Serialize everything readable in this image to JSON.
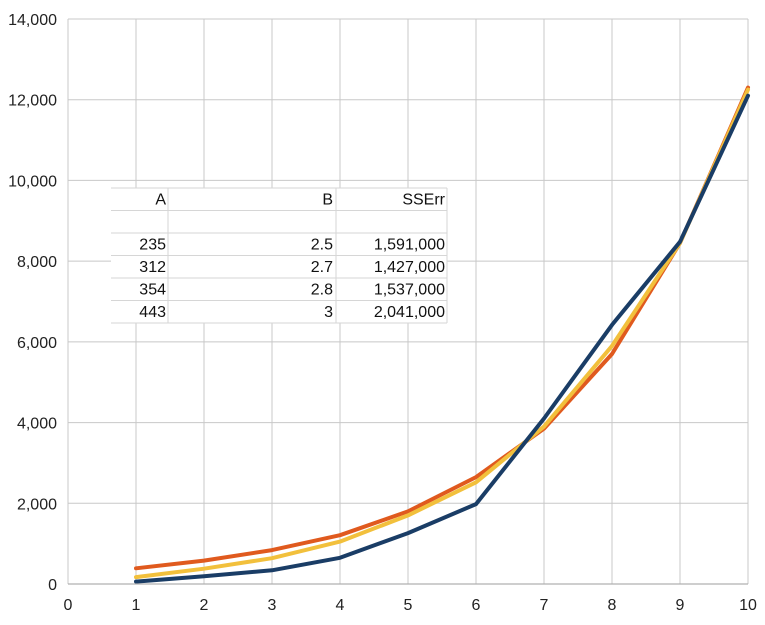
{
  "chart_data": {
    "type": "line",
    "title": "",
    "xlabel": "",
    "ylabel": "",
    "xlim": [
      0,
      10
    ],
    "ylim": [
      0,
      14000
    ],
    "x_ticks": [
      "0",
      "1",
      "2",
      "3",
      "4",
      "5",
      "6",
      "7",
      "8",
      "9",
      "10"
    ],
    "y_ticks": [
      "0",
      "2,000",
      "4,000",
      "6,000",
      "8,000",
      "10,000",
      "12,000",
      "14,000"
    ],
    "grid": true,
    "legend": "none",
    "x": [
      1,
      2,
      3,
      4,
      5,
      6,
      7,
      8,
      9,
      10
    ],
    "series": [
      {
        "color": "#e05a1e",
        "values": [
          390,
          580,
          840,
          1210,
          1800,
          2650,
          3850,
          5700,
          8450,
          12300
        ]
      },
      {
        "color": "#f2c03c",
        "values": [
          170,
          380,
          640,
          1050,
          1700,
          2520,
          3900,
          5900,
          8450,
          12250
        ]
      },
      {
        "color": "#1a3d66",
        "values": [
          60,
          190,
          340,
          650,
          1260,
          1980,
          4100,
          6420,
          8480,
          12100
        ]
      }
    ],
    "table": {
      "headers": [
        "A",
        "B",
        "SSErr"
      ],
      "rows": [
        [
          "235",
          "2.5",
          "1,591,000"
        ],
        [
          "312",
          "2.7",
          "1,427,000"
        ],
        [
          "354",
          "2.8",
          "1,537,000"
        ],
        [
          "443",
          "3",
          "2,041,000"
        ]
      ]
    }
  }
}
